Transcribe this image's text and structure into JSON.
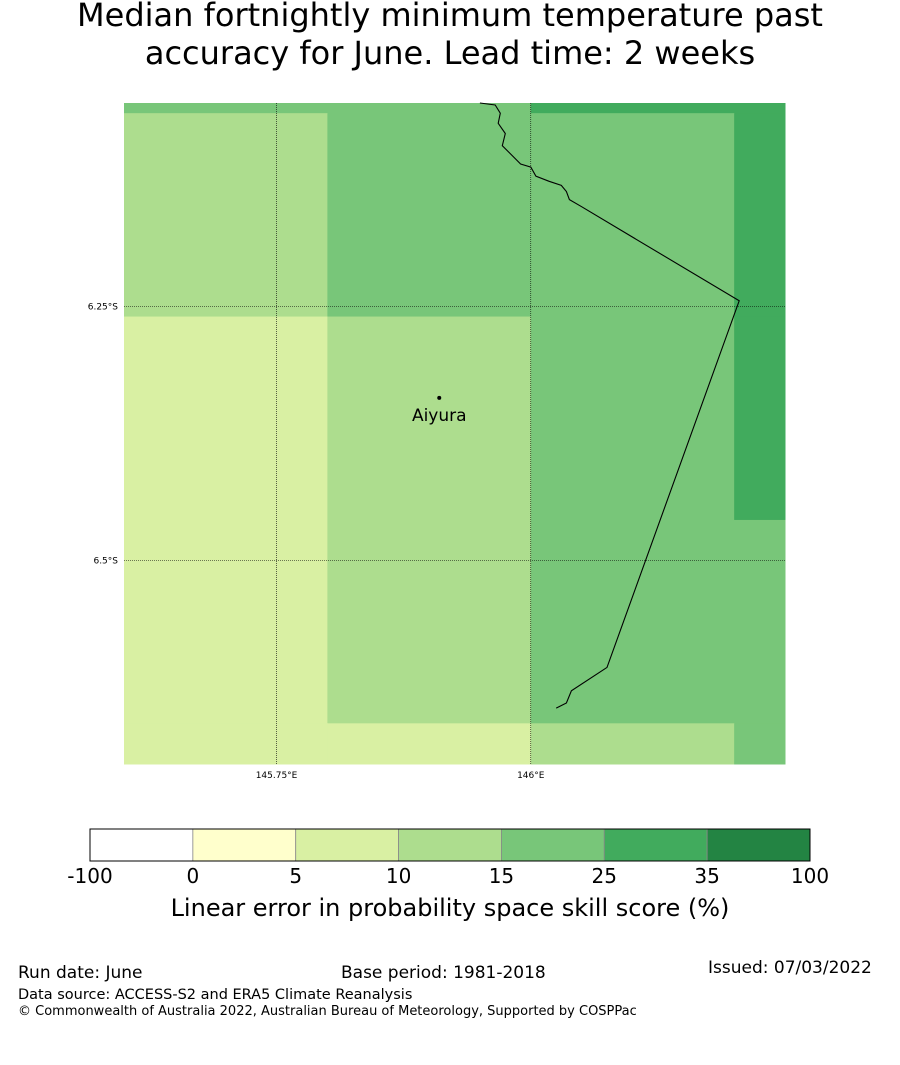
{
  "title": {
    "line1": "Median fortnightly minimum temperature past",
    "line2": "accuracy for June. Lead time: 2 weeks"
  },
  "map": {
    "extent": {
      "lon": [
        145.6,
        146.25
      ],
      "lat": [
        -6.05,
        -6.7
      ]
    },
    "lat_ticks": [
      {
        "value": -6.25,
        "label": "6.25°S"
      },
      {
        "value": -6.5,
        "label": "6.5°S"
      }
    ],
    "lon_ticks": [
      {
        "value": 145.75,
        "label": "145.75°E"
      },
      {
        "value": 146.0,
        "label": "146°E"
      }
    ],
    "place": {
      "name": "Aiyura",
      "lon": 145.91,
      "lat": -6.34
    },
    "cells": [
      {
        "lon0": 145.6,
        "lon1": 145.8,
        "lat0": -6.05,
        "lat1": -6.06,
        "bin": 4
      },
      {
        "lon0": 145.8,
        "lon1": 146.0,
        "lat0": -6.05,
        "lat1": -6.06,
        "bin": 4
      },
      {
        "lon0": 146.0,
        "lon1": 146.25,
        "lat0": -6.05,
        "lat1": -6.06,
        "bin": 5
      },
      {
        "lon0": 145.6,
        "lon1": 145.8,
        "lat0": -6.06,
        "lat1": -6.26,
        "bin": 3
      },
      {
        "lon0": 145.8,
        "lon1": 146.0,
        "lat0": -6.06,
        "lat1": -6.26,
        "bin": 4
      },
      {
        "lon0": 146.0,
        "lon1": 146.2,
        "lat0": -6.06,
        "lat1": -6.26,
        "bin": 4
      },
      {
        "lon0": 146.2,
        "lon1": 146.25,
        "lat0": -6.06,
        "lat1": -6.26,
        "bin": 5
      },
      {
        "lon0": 145.6,
        "lon1": 145.8,
        "lat0": -6.26,
        "lat1": -6.46,
        "bin": 2
      },
      {
        "lon0": 145.8,
        "lon1": 146.0,
        "lat0": -6.26,
        "lat1": -6.46,
        "bin": 3
      },
      {
        "lon0": 146.0,
        "lon1": 146.2,
        "lat0": -6.26,
        "lat1": -6.46,
        "bin": 4
      },
      {
        "lon0": 146.2,
        "lon1": 146.25,
        "lat0": -6.26,
        "lat1": -6.46,
        "bin": 5
      },
      {
        "lon0": 145.6,
        "lon1": 145.8,
        "lat0": -6.46,
        "lat1": -6.66,
        "bin": 2
      },
      {
        "lon0": 145.8,
        "lon1": 146.0,
        "lat0": -6.46,
        "lat1": -6.66,
        "bin": 3
      },
      {
        "lon0": 146.0,
        "lon1": 146.2,
        "lat0": -6.46,
        "lat1": -6.66,
        "bin": 4
      },
      {
        "lon0": 146.2,
        "lon1": 146.25,
        "lat0": -6.46,
        "lat1": -6.66,
        "bin": 4
      },
      {
        "lon0": 145.6,
        "lon1": 145.8,
        "lat0": -6.66,
        "lat1": -6.7,
        "bin": 2
      },
      {
        "lon0": 145.8,
        "lon1": 146.0,
        "lat0": -6.66,
        "lat1": -6.7,
        "bin": 2
      },
      {
        "lon0": 146.0,
        "lon1": 146.2,
        "lat0": -6.66,
        "lat1": -6.7,
        "bin": 3
      },
      {
        "lon0": 146.2,
        "lon1": 146.25,
        "lat0": -6.66,
        "lat1": -6.7,
        "bin": 4
      }
    ],
    "border": [
      [
        145.95,
        -6.05
      ],
      [
        145.965,
        -6.052
      ],
      [
        145.97,
        -6.06
      ],
      [
        145.968,
        -6.07
      ],
      [
        145.975,
        -6.08
      ],
      [
        145.972,
        -6.092
      ],
      [
        145.982,
        -6.102
      ],
      [
        145.99,
        -6.11
      ],
      [
        146.0,
        -6.113
      ],
      [
        146.005,
        -6.122
      ],
      [
        146.018,
        -6.127
      ],
      [
        146.03,
        -6.131
      ],
      [
        146.035,
        -6.137
      ],
      [
        146.038,
        -6.145
      ],
      [
        146.05,
        -6.152
      ],
      [
        146.205,
        -6.2445
      ],
      [
        146.075,
        -6.605
      ],
      [
        146.04,
        -6.628
      ],
      [
        146.035,
        -6.64
      ],
      [
        146.025,
        -6.645
      ]
    ]
  },
  "colorbar": {
    "bins": [
      {
        "from": "-100",
        "to": "0",
        "color": "#ffffff"
      },
      {
        "from": "0",
        "to": "5",
        "color": "#ffffcc"
      },
      {
        "from": "5",
        "to": "10",
        "color": "#d9f0a3"
      },
      {
        "from": "10",
        "to": "15",
        "color": "#addd8e"
      },
      {
        "from": "15",
        "to": "25",
        "color": "#78c679"
      },
      {
        "from": "25",
        "to": "35",
        "color": "#41ab5d"
      },
      {
        "from": "35",
        "to": "100",
        "color": "#238443"
      }
    ],
    "labels": [
      "-100",
      "0",
      "5",
      "10",
      "15",
      "25",
      "35",
      "100"
    ],
    "title": "Linear error in probability space skill score (%)"
  },
  "footer": {
    "run_date": "Run date: June",
    "base_period": "Base period: 1981-2018",
    "issued": "Issued: 07/03/2022",
    "data_source": "Data source: ACCESS-S2 and ERA5 Climate Reanalysis",
    "copyright": "© Commonwealth of Australia 2022, Australian Bureau of Meteorology, Supported by COSPPac"
  }
}
